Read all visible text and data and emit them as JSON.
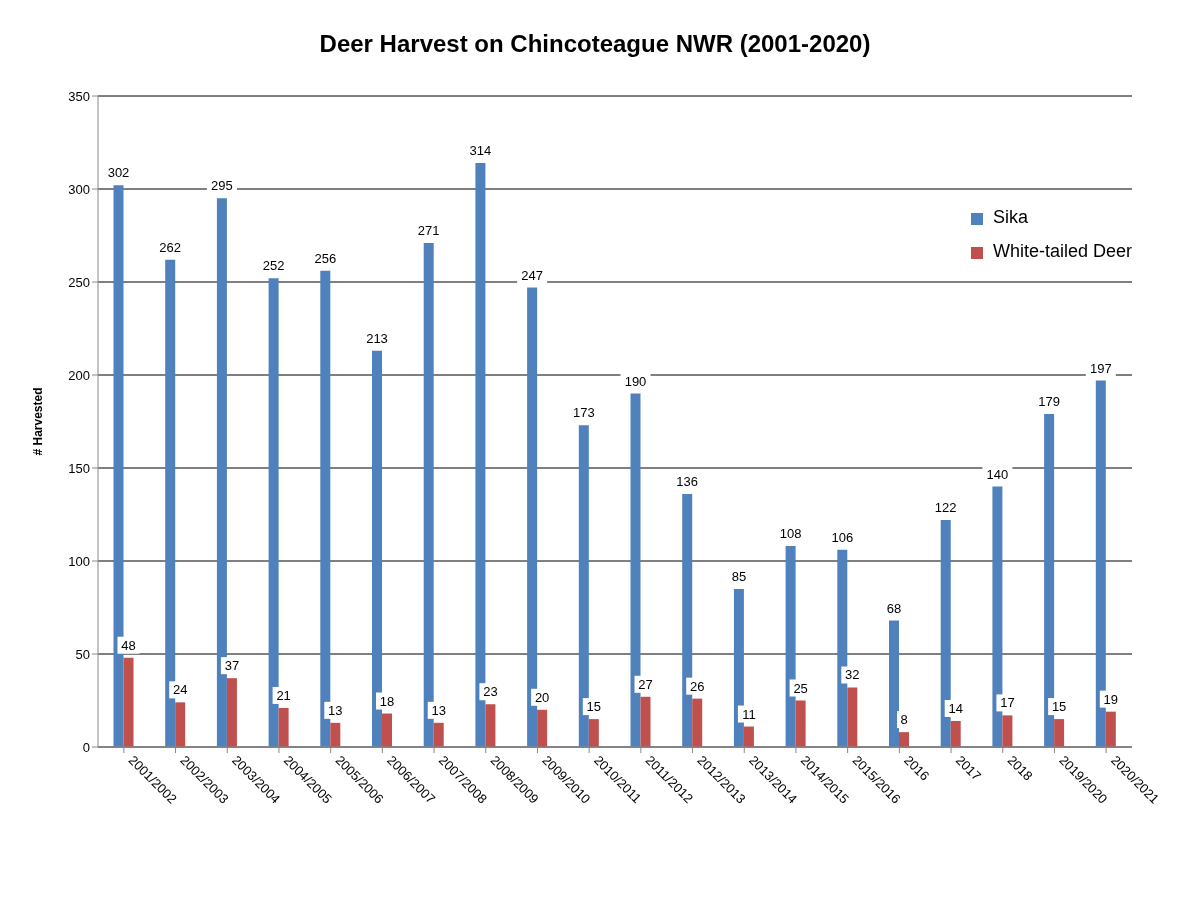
{
  "chart_data": {
    "type": "bar",
    "title": "Deer Harvest on Chincoteague NWR (2001-2020)",
    "ylabel": "# Harvested",
    "categories": [
      "2001/2002",
      "2002/2003",
      "2003/2004",
      "2004/2005",
      "2005/2006",
      "2006/2007",
      "2007/2008",
      "2008/2009",
      "2009/2010",
      "2010/2011",
      "2011/2012",
      "2012/2013",
      "2013/2014",
      "2014/2015",
      "2015/2016",
      "2016",
      "2017",
      "2018",
      "2019/2020",
      "2020/2021"
    ],
    "series": [
      {
        "name": "Sika",
        "color": "#4f81bd",
        "values": [
          302,
          262,
          295,
          252,
          256,
          213,
          271,
          314,
          247,
          173,
          190,
          136,
          85,
          108,
          106,
          68,
          122,
          140,
          179,
          197
        ]
      },
      {
        "name": "White-tailed Deer",
        "color": "#c0504d",
        "values": [
          48,
          24,
          37,
          21,
          13,
          18,
          13,
          23,
          20,
          15,
          27,
          26,
          11,
          25,
          32,
          8,
          14,
          17,
          15,
          19
        ]
      }
    ],
    "ylim": [
      0,
      350
    ],
    "yticks": [
      0,
      50,
      100,
      150,
      200,
      250,
      300,
      350
    ],
    "grid": "y",
    "legend": "top right",
    "data_labels": true
  }
}
